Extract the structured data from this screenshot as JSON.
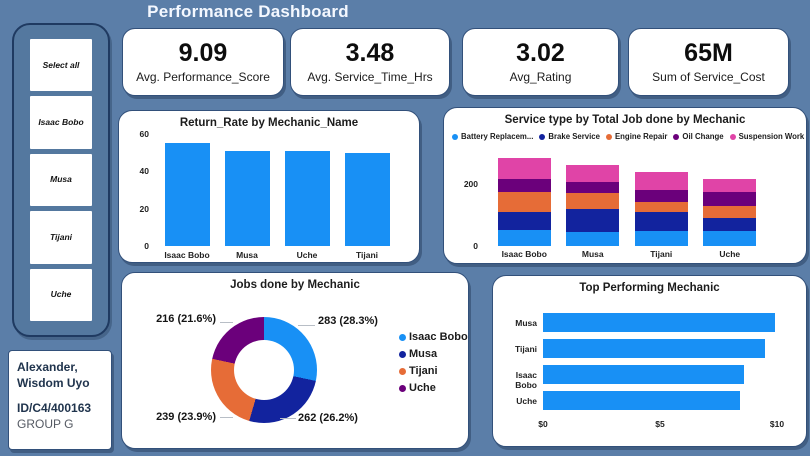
{
  "page": {
    "title": "Performance Dashboard"
  },
  "colors": {
    "background": "#5B7EA8",
    "card": "#FFFFFF",
    "bar_blue": "#1890F5",
    "dark_blue": "#12239E",
    "orange": "#E66C37",
    "purple": "#6B007B",
    "pink": "#E044A7"
  },
  "slicer": {
    "items": [
      "Select all",
      "Isaac Bobo",
      "Musa",
      "Tijani",
      "Uche"
    ]
  },
  "profile": {
    "name_line1": "Alexander,",
    "name_line2": "Wisdom Uyo",
    "id": "ID/C4/400163",
    "group": "GROUP G"
  },
  "kpis": [
    {
      "value": "9.09",
      "label": "Avg. Performance_Score"
    },
    {
      "value": "3.48",
      "label": "Avg. Service_Time_Hrs"
    },
    {
      "value": "3.02",
      "label": "Avg_Rating"
    },
    {
      "value": "65M",
      "label": "Sum of Service_Cost"
    }
  ],
  "chart_data": [
    {
      "id": "return_rate",
      "type": "bar",
      "title": "Return_Rate by Mechanic_Name",
      "categories": [
        "Isaac Bobo",
        "Musa",
        "Uche",
        "Tijani"
      ],
      "values": [
        55,
        51,
        51,
        50
      ],
      "xlabel": "",
      "ylabel": "",
      "ylim": [
        0,
        60
      ],
      "yticks": [
        0,
        20,
        40,
        60
      ],
      "grid": false,
      "bar_color": "#1890F5"
    },
    {
      "id": "service_type",
      "type": "bar",
      "subtype": "stacked",
      "title": "Service type by Total Job done by Mechanic",
      "categories": [
        "Isaac Bobo",
        "Musa",
        "Tijani",
        "Uche"
      ],
      "series": [
        {
          "name": "Battery Replacem...",
          "color": "#1890F5",
          "values": [
            52,
            46,
            50,
            50
          ]
        },
        {
          "name": "Brake Service",
          "color": "#12239E",
          "values": [
            58,
            72,
            60,
            39
          ]
        },
        {
          "name": "Engine Repair",
          "color": "#E66C37",
          "values": [
            63,
            53,
            33,
            41
          ]
        },
        {
          "name": "Oil Change",
          "color": "#6B007B",
          "values": [
            44,
            35,
            39,
            44
          ]
        },
        {
          "name": "Suspension Work",
          "color": "#E044A7",
          "values": [
            66,
            56,
            57,
            42
          ]
        }
      ],
      "totals": [
        283,
        262,
        239,
        216
      ],
      "ylim": [
        0,
        300
      ],
      "yticks": [
        0,
        200
      ],
      "grid": false,
      "legend_position": "top"
    },
    {
      "id": "jobs_by_mechanic",
      "type": "pie",
      "donut": true,
      "title": "Jobs done by Mechanic",
      "categories": [
        "Isaac Bobo",
        "Musa",
        "Tijani",
        "Uche"
      ],
      "values": [
        283,
        262,
        239,
        216
      ],
      "labels": [
        "283 (28.3%)",
        "262 (26.2%)",
        "239 (23.9%)",
        "216 (21.6%)"
      ],
      "colors": [
        "#1890F5",
        "#12239E",
        "#E66C37",
        "#6B007B"
      ],
      "legend_position": "right"
    },
    {
      "id": "top_mechanic",
      "type": "bar",
      "subtype": "horizontal",
      "title": "Top Performing Mechanic",
      "categories": [
        "Musa",
        "Tijani",
        "Isaac Bobo",
        "Uche"
      ],
      "values": [
        9.9,
        9.5,
        8.6,
        8.4
      ],
      "xlim": [
        0,
        10
      ],
      "xticks": [
        "$0",
        "$5",
        "$10"
      ],
      "grid": false,
      "bar_color": "#1890F5"
    }
  ]
}
